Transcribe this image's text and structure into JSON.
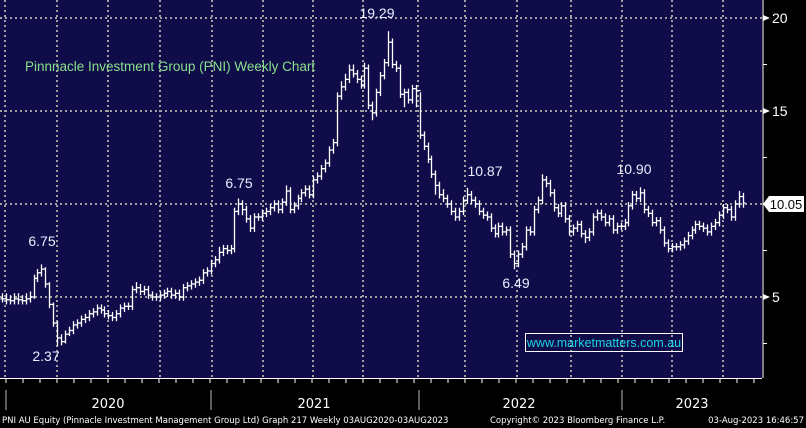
{
  "chart_data": {
    "type": "ohlc-bar",
    "title": "Pinnnacle Investment Group (PNI) Weekly Chart",
    "bar_format": [
      "high",
      "low",
      "close"
    ],
    "ylim": [
      0.65,
      21
    ],
    "yticks": [
      5,
      15,
      20
    ],
    "last_price": "10.05",
    "x_year_labels": [
      "2020",
      "2021",
      "2022",
      "2023"
    ],
    "grid": true,
    "annotations": [
      "19.29",
      "6.75",
      "2.37",
      "6.75",
      "10.87",
      "6.49",
      "10.90"
    ],
    "watermark": "www.marketmatters.com.au",
    "colors": {
      "background": "#100c4a",
      "bars": "#ffffff",
      "title": "#86e08a",
      "watermark": "#19d3e6",
      "grid": "#a0a0a0"
    },
    "bars": [
      [
        5.2,
        4.7,
        4.9
      ],
      [
        5.2,
        4.6,
        4.85
      ],
      [
        5.1,
        4.6,
        4.8
      ],
      [
        5.2,
        4.6,
        4.9
      ],
      [
        5.2,
        4.6,
        4.85
      ],
      [
        5.1,
        4.6,
        4.8
      ],
      [
        5.2,
        4.6,
        4.9
      ],
      [
        5.3,
        4.7,
        5.0
      ],
      [
        6.2,
        4.9,
        6.0
      ],
      [
        6.5,
        5.8,
        6.3
      ],
      [
        6.75,
        6.1,
        6.5
      ],
      [
        6.6,
        5.5,
        5.7
      ],
      [
        5.8,
        4.4,
        4.6
      ],
      [
        4.7,
        3.4,
        3.6
      ],
      [
        3.7,
        2.37,
        2.8
      ],
      [
        3.0,
        2.4,
        2.6
      ],
      [
        3.2,
        2.5,
        3.0
      ],
      [
        3.4,
        2.9,
        3.2
      ],
      [
        3.7,
        3.0,
        3.5
      ],
      [
        3.8,
        3.3,
        3.6
      ],
      [
        4.0,
        3.4,
        3.8
      ],
      [
        4.1,
        3.6,
        3.9
      ],
      [
        4.3,
        3.7,
        4.1
      ],
      [
        4.4,
        3.9,
        4.2
      ],
      [
        4.6,
        4.0,
        4.4
      ],
      [
        4.6,
        4.1,
        4.3
      ],
      [
        4.5,
        3.9,
        4.1
      ],
      [
        4.3,
        3.8,
        4.0
      ],
      [
        4.2,
        3.7,
        3.9
      ],
      [
        4.3,
        3.7,
        4.1
      ],
      [
        4.6,
        3.9,
        4.4
      ],
      [
        4.7,
        4.2,
        4.5
      ],
      [
        4.7,
        4.3,
        4.5
      ],
      [
        5.6,
        4.3,
        5.4
      ],
      [
        5.8,
        5.2,
        5.5
      ],
      [
        5.7,
        5.1,
        5.3
      ],
      [
        5.6,
        5.1,
        5.4
      ],
      [
        5.6,
        4.9,
        5.1
      ],
      [
        5.3,
        4.8,
        5.0
      ],
      [
        5.2,
        4.8,
        5.0
      ],
      [
        5.3,
        4.8,
        5.1
      ],
      [
        5.4,
        4.9,
        5.2
      ],
      [
        5.5,
        5.0,
        5.3
      ],
      [
        5.5,
        4.9,
        5.1
      ],
      [
        5.4,
        4.9,
        5.2
      ],
      [
        5.4,
        4.8,
        5.0
      ],
      [
        5.7,
        4.8,
        5.5
      ],
      [
        5.8,
        5.3,
        5.6
      ],
      [
        5.9,
        5.4,
        5.7
      ],
      [
        6.0,
        5.5,
        5.8
      ],
      [
        6.1,
        5.6,
        5.9
      ],
      [
        6.5,
        5.7,
        6.3
      ],
      [
        6.6,
        6.1,
        6.4
      ],
      [
        7.0,
        6.2,
        6.8
      ],
      [
        7.2,
        6.6,
        7.0
      ],
      [
        7.7,
        6.8,
        7.4
      ],
      [
        7.8,
        7.2,
        7.6
      ],
      [
        7.8,
        7.3,
        7.5
      ],
      [
        7.8,
        7.3,
        7.6
      ],
      [
        9.8,
        7.4,
        9.6
      ],
      [
        10.3,
        9.4,
        10.0
      ],
      [
        10.2,
        9.4,
        9.7
      ],
      [
        9.9,
        9.0,
        9.2
      ],
      [
        9.4,
        8.5,
        8.7
      ],
      [
        9.5,
        8.5,
        9.3
      ],
      [
        9.5,
        9.1,
        9.3
      ],
      [
        9.7,
        9.1,
        9.5
      ],
      [
        9.8,
        9.3,
        9.6
      ],
      [
        10.0,
        9.4,
        9.8
      ],
      [
        10.2,
        9.6,
        10.0
      ],
      [
        10.2,
        9.5,
        9.7
      ],
      [
        10.3,
        9.5,
        10.1
      ],
      [
        11.0,
        9.9,
        10.7
      ],
      [
        10.9,
        9.5,
        9.7
      ],
      [
        10.1,
        9.5,
        9.9
      ],
      [
        10.5,
        9.7,
        10.3
      ],
      [
        10.8,
        10.1,
        10.6
      ],
      [
        11.0,
        10.4,
        10.8
      ],
      [
        11.0,
        10.3,
        10.5
      ],
      [
        11.5,
        10.3,
        11.3
      ],
      [
        11.7,
        11.1,
        11.5
      ],
      [
        12.1,
        11.3,
        11.9
      ],
      [
        12.4,
        11.7,
        12.2
      ],
      [
        13.1,
        12.0,
        12.9
      ],
      [
        13.5,
        12.7,
        13.3
      ],
      [
        16.0,
        13.1,
        15.8
      ],
      [
        16.6,
        15.6,
        16.3
      ],
      [
        17.0,
        16.1,
        16.7
      ],
      [
        17.5,
        16.5,
        17.2
      ],
      [
        17.5,
        16.8,
        17.0
      ],
      [
        17.2,
        16.5,
        16.7
      ],
      [
        16.9,
        16.2,
        16.4
      ],
      [
        17.6,
        16.2,
        17.3
      ],
      [
        17.5,
        15.1,
        15.3
      ],
      [
        15.5,
        14.5,
        14.9
      ],
      [
        16.2,
        14.7,
        16.0
      ],
      [
        17.1,
        15.8,
        16.9
      ],
      [
        17.8,
        16.7,
        17.6
      ],
      [
        19.29,
        17.4,
        18.7
      ],
      [
        18.9,
        17.3,
        17.5
      ],
      [
        17.7,
        17.1,
        17.3
      ],
      [
        17.5,
        15.7,
        15.9
      ],
      [
        16.2,
        15.2,
        16.0
      ],
      [
        16.2,
        15.4,
        15.6
      ],
      [
        16.4,
        15.4,
        16.2
      ],
      [
        16.4,
        15.2,
        16.1
      ],
      [
        16.0,
        13.5,
        13.7
      ],
      [
        13.9,
        12.9,
        13.1
      ],
      [
        13.3,
        12.2,
        12.4
      ],
      [
        12.6,
        11.4,
        11.6
      ],
      [
        11.8,
        10.5,
        11.0
      ],
      [
        11.2,
        10.3,
        10.5
      ],
      [
        10.8,
        10.1,
        10.3
      ],
      [
        10.5,
        9.8,
        10.0
      ],
      [
        10.2,
        9.4,
        9.6
      ],
      [
        9.8,
        9.1,
        9.3
      ],
      [
        9.8,
        9.1,
        9.6
      ],
      [
        10.4,
        9.4,
        10.2
      ],
      [
        10.87,
        10.0,
        10.5
      ],
      [
        10.7,
        10.0,
        10.2
      ],
      [
        10.4,
        9.8,
        10.0
      ],
      [
        10.2,
        9.4,
        9.6
      ],
      [
        9.8,
        9.2,
        9.4
      ],
      [
        9.6,
        9.1,
        9.3
      ],
      [
        9.5,
        8.5,
        8.7
      ],
      [
        8.9,
        8.2,
        8.4
      ],
      [
        9.0,
        8.2,
        8.8
      ],
      [
        9.0,
        8.3,
        8.5
      ],
      [
        8.8,
        8.3,
        8.6
      ],
      [
        8.8,
        7.1,
        7.3
      ],
      [
        7.5,
        6.49,
        6.8
      ],
      [
        7.5,
        6.6,
        7.3
      ],
      [
        7.9,
        7.1,
        7.7
      ],
      [
        8.8,
        7.5,
        8.6
      ],
      [
        8.8,
        8.3,
        8.5
      ],
      [
        9.9,
        8.3,
        9.7
      ],
      [
        10.4,
        9.5,
        10.2
      ],
      [
        11.6,
        10.0,
        11.3
      ],
      [
        11.5,
        10.9,
        11.1
      ],
      [
        11.3,
        10.4,
        10.6
      ],
      [
        10.8,
        9.6,
        9.8
      ],
      [
        10.0,
        9.3,
        9.5
      ],
      [
        10.1,
        9.3,
        9.9
      ],
      [
        10.1,
        9.0,
        9.2
      ],
      [
        9.4,
        8.3,
        8.5
      ],
      [
        8.9,
        8.3,
        8.7
      ],
      [
        9.1,
        8.5,
        8.9
      ],
      [
        9.1,
        8.2,
        8.4
      ],
      [
        8.6,
        7.9,
        8.2
      ],
      [
        8.7,
        8.0,
        8.5
      ],
      [
        9.5,
        8.3,
        9.3
      ],
      [
        9.7,
        9.1,
        9.5
      ],
      [
        9.7,
        9.1,
        9.3
      ],
      [
        9.5,
        8.8,
        9.0
      ],
      [
        9.4,
        8.8,
        9.2
      ],
      [
        9.4,
        8.4,
        8.6
      ],
      [
        9.0,
        8.4,
        8.8
      ],
      [
        9.0,
        8.6,
        8.8
      ],
      [
        9.2,
        8.6,
        9.0
      ],
      [
        10.1,
        8.8,
        9.9
      ],
      [
        10.7,
        9.7,
        10.5
      ],
      [
        10.7,
        10.1,
        10.3
      ],
      [
        10.9,
        10.1,
        10.6
      ],
      [
        10.8,
        9.5,
        9.7
      ],
      [
        9.9,
        9.3,
        9.5
      ],
      [
        9.7,
        8.8,
        9.0
      ],
      [
        9.3,
        8.8,
        9.1
      ],
      [
        9.3,
        8.4,
        8.6
      ],
      [
        8.8,
        7.7,
        7.9
      ],
      [
        8.1,
        7.4,
        7.6
      ],
      [
        7.9,
        7.4,
        7.7
      ],
      [
        7.9,
        7.5,
        7.7
      ],
      [
        8.0,
        7.5,
        7.8
      ],
      [
        8.2,
        7.6,
        8.0
      ],
      [
        8.5,
        7.8,
        8.3
      ],
      [
        8.8,
        8.1,
        8.6
      ],
      [
        9.1,
        8.4,
        8.9
      ],
      [
        9.1,
        8.6,
        8.8
      ],
      [
        9.0,
        8.5,
        8.7
      ],
      [
        8.9,
        8.3,
        8.5
      ],
      [
        9.0,
        8.3,
        8.8
      ],
      [
        9.2,
        8.6,
        9.0
      ],
      [
        9.6,
        8.8,
        9.4
      ],
      [
        10.0,
        9.2,
        9.8
      ],
      [
        10.0,
        9.5,
        9.7
      ],
      [
        9.9,
        9.1,
        9.3
      ],
      [
        10.2,
        9.1,
        10.0
      ],
      [
        10.7,
        9.8,
        10.4
      ],
      [
        10.6,
        9.8,
        10.05
      ]
    ]
  },
  "footer": {
    "security": "PNI AU Equity (Pinnacle Investment Management Group Ltd) Graph 217  Weekly 03AUG2020-03AUG2023",
    "copyright": "Copyright© 2023 Bloomberg Finance L.P.",
    "timestamp": "03-Aug-2023 16:46:57"
  }
}
